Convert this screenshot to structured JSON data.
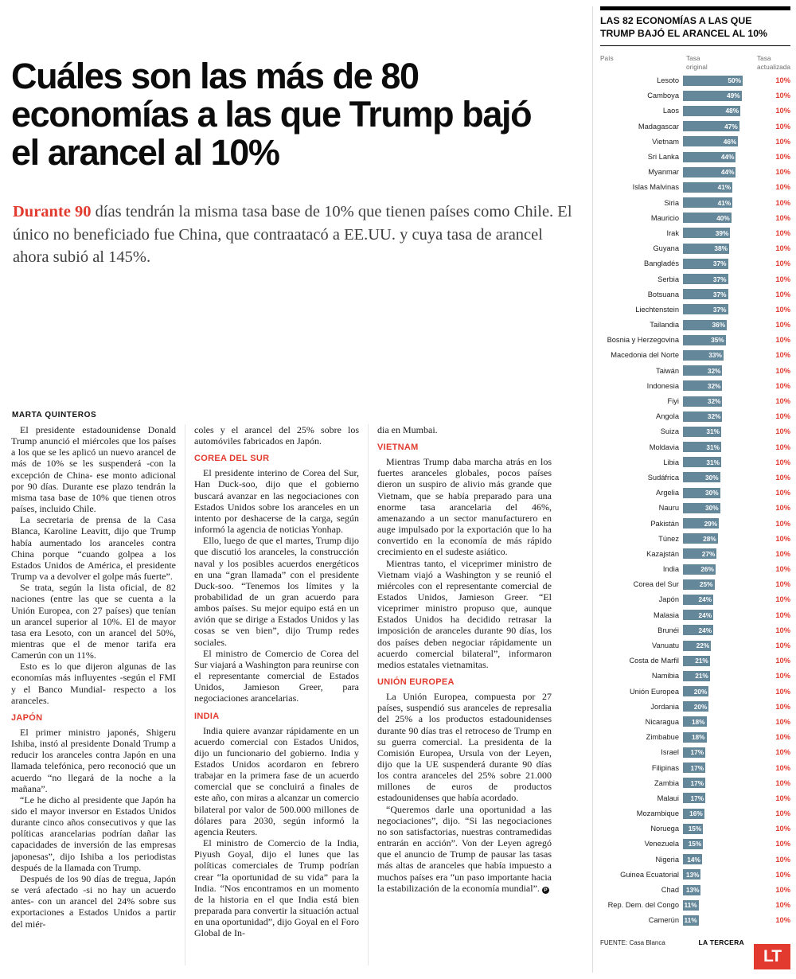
{
  "colors": {
    "accent_red": "#e23a2e",
    "bar": "#64879a"
  },
  "headline": "Cuáles son las más de 80 economías a las que Trump bajó el arancel al 10%",
  "lede": {
    "highlight": "Durante 90",
    "rest": " días tendrán la misma tasa base de 10% que tienen países como Chile. El único no beneficiado fue China, que contraatacó a EE.UU. y cuya tasa de arancel ahora subió al 145%."
  },
  "byline": "MARTA QUINTEROS",
  "article": {
    "end_mark": "P",
    "columns": [
      [
        {
          "t": "p",
          "x": "El presidente estadounidense Donald Trump anunció el miércoles que los países a los que se les aplicó un nuevo arancel de más de 10% se les suspenderá -con la excepción de China- ese monto adicional por 90 días. Durante ese plazo tendrán la misma tasa base de 10% que tienen otros países, incluido Chile."
        },
        {
          "t": "p",
          "x": "La secretaria de prensa de la Casa Blanca, Karoline Leavitt, dijo que Trump había aumentado los aranceles contra China porque “cuando golpea a los Estados Unidos de América, el presidente Trump va a devolver el golpe más fuerte”."
        },
        {
          "t": "p",
          "x": "Se trata, según la lista oficial, de 82 naciones (entre las que se cuenta a la Unión Europea, con 27 países) que tenían un arancel superior al 10%. El de mayor tasa era Lesoto, con un arancel del 50%, mientras que el de menor tarifa era Camerún con un 11%."
        },
        {
          "t": "p",
          "x": "Esto es lo que dijeron algunas de las economías más influyentes -según el FMI y el Banco Mundial- respecto a los aranceles."
        },
        {
          "t": "h",
          "x": "JAPÓN"
        },
        {
          "t": "p",
          "x": "El primer ministro japonés, Shigeru Ishiba, instó al presidente Donald Trump a reducir los aranceles contra Japón en una llamada telefónica, pero reconoció que un acuerdo “no llegará de la noche a la mañana”."
        },
        {
          "t": "p",
          "x": "“Le he dicho al presidente que Japón ha sido el mayor inversor en Estados Unidos durante cinco años consecutivos y que las políticas arancelarias podrían dañar las capacidades de inversión de las empresas japonesas”, dijo Ishiba a los periodistas después de la llamada con Trump."
        },
        {
          "t": "p",
          "x": "Después de los 90 días de tregua, Japón se verá afectado -si no hay un acuerdo antes- con un arancel del 24% sobre sus exportaciones a Estados Unidos a partir del miér-"
        }
      ],
      [
        {
          "t": "pc",
          "x": "coles y el arancel del 25% sobre los automóviles fabricados en Japón."
        },
        {
          "t": "h",
          "x": "COREA DEL SUR"
        },
        {
          "t": "p",
          "x": "El presidente interino de Corea del Sur, Han Duck-soo, dijo que el gobierno buscará avanzar en las negociaciones con Estados Unidos sobre los aranceles en un intento por deshacerse de la carga, según informó la agencia de noticias Yonhap."
        },
        {
          "t": "p",
          "x": "Ello, luego de que el martes, Trump dijo que discutió los aranceles, la construcción naval y los posibles acuerdos energéticos en una “gran llamada” con el presidente Duck-soo. “Tenemos los límites y la probabilidad de un gran acuerdo para ambos países. Su mejor equipo está en un avión que se dirige a Estados Unidos y las cosas se ven bien”, dijo Trump redes sociales."
        },
        {
          "t": "p",
          "x": "El ministro de Comercio de Corea del Sur viajará a Washington para reunirse con el representante comercial de Estados Unidos, Jamieson Greer, para negociaciones arancelarias."
        },
        {
          "t": "h",
          "x": "INDIA"
        },
        {
          "t": "p",
          "x": "India quiere avanzar rápidamente en un acuerdo comercial con Estados Unidos, dijo un funcionario del gobierno. India y Estados Unidos acordaron en febrero trabajar en la primera fase de un acuerdo comercial que se concluirá a finales de este año, con miras a alcanzar un comercio bilateral por valor de 500.000 millones de dólares para 2030, según informó la agencia Reuters."
        },
        {
          "t": "p",
          "x": "El ministro de Comercio de la India, Piyush Goyal, dijo el lunes que las políticas comerciales de Trump podrían crear “la oportunidad de su vida” para la India. “Nos encontramos en un momento de la historia en el que India está bien preparada para convertir la situación actual en una oportunidad”, dijo Goyal en el Foro Global de In-"
        }
      ],
      [
        {
          "t": "pc",
          "x": "dia en Mumbai."
        },
        {
          "t": "h",
          "x": "VIETNAM"
        },
        {
          "t": "p",
          "x": "Mientras Trump daba marcha atrás en los fuertes aranceles globales, pocos países dieron un suspiro de alivio más grande que Vietnam, que se había preparado para una enorme tasa arancelaria del 46%, amenazando a un sector manufacturero en auge impulsado por la exportación que lo ha convertido en la economía de más rápido crecimiento en el sudeste asiático."
        },
        {
          "t": "p",
          "x": "Mientras tanto, el viceprimer ministro de Vietnam viajó a Washington y se reunió el miércoles con el representante comercial de Estados Unidos, Jamieson Greer. “El viceprimer ministro propuso que, aunque Estados Unidos ha decidido retrasar la imposición de aranceles durante 90 días, los dos países deben negociar rápidamente un acuerdo comercial bilateral”, informaron medios estatales vietnamitas."
        },
        {
          "t": "h",
          "x": "UNIÓN EUROPEA"
        },
        {
          "t": "p",
          "x": "La Unión Europea, compuesta por 27 países, suspendió sus aranceles de represalia del 25% a los productos estadounidenses durante 90 días tras el retroceso de Trump en su guerra comercial. La presidenta de la Comisión Europea, Ursula von der Leyen, dijo que la UE suspenderá durante 90 días los contra aranceles del 25% sobre 21.000 millones de euros de productos estadounidenses que había acordado."
        },
        {
          "t": "p",
          "end": true,
          "x": "“Queremos darle una oportunidad a las negociaciones”, dijo. “Si las negociaciones no son satisfactorias, nuestras contramedidas entrarán en acción”. Von der Leyen agregó que el anuncio de Trump de pausar las tasas más altas de aranceles que había impuesto a muchos países era “un paso importante hacia la estabilización de la economía mundial”."
        }
      ]
    ]
  },
  "chart": {
    "title": "LAS 82 ECONOMÍAS A LAS QUE TRUMP BAJÓ EL ARANCEL AL 10%",
    "col_country": "País",
    "col_original": "Tasa\noriginal",
    "col_updated": "Tasa\nactualizada",
    "source": "FUENTE: Casa Blanca",
    "credit": "LA TERCERA",
    "logo": "LT"
  },
  "chart_data": {
    "type": "bar",
    "title": "LAS 82 ECONOMÍAS A LAS QUE TRUMP BAJÓ EL ARANCEL AL 10%",
    "xlabel": "Tasa original (%)",
    "ylabel": "País",
    "unit": "%",
    "updated_rate": "10%",
    "xlim": [
      0,
      50
    ],
    "legend_position": "none",
    "grid": false,
    "categories": [
      "Lesoto",
      "Camboya",
      "Laos",
      "Madagascar",
      "Vietnam",
      "Sri Lanka",
      "Myanmar",
      "Islas Malvinas",
      "Siria",
      "Mauricio",
      "Irak",
      "Guyana",
      "Bangladés",
      "Serbia",
      "Botsuana",
      "Liechtenstein",
      "Tailandia",
      "Bosnia y Herzegovina",
      "Macedonia del Norte",
      "Taiwán",
      "Indonesia",
      "Fiyi",
      "Angola",
      "Suiza",
      "Moldavia",
      "Libia",
      "Sudáfrica",
      "Argelia",
      "Nauru",
      "Pakistán",
      "Túnez",
      "Kazajstán",
      "India",
      "Corea del Sur",
      "Japón",
      "Malasia",
      "Brunéi",
      "Vanuatu",
      "Costa de Marfil",
      "Namibia",
      "Unión Europea",
      "Jordania",
      "Nicaragua",
      "Zimbabue",
      "Israel",
      "Filipinas",
      "Zambia",
      "Malaui",
      "Mozambique",
      "Noruega",
      "Venezuela",
      "Nigeria",
      "Guinea Ecuatorial",
      "Chad",
      "Rep. Dem. del Congo",
      "Camerún"
    ],
    "values": [
      50,
      49,
      48,
      47,
      46,
      44,
      44,
      41,
      41,
      40,
      39,
      38,
      37,
      37,
      37,
      37,
      36,
      35,
      33,
      32,
      32,
      32,
      32,
      31,
      31,
      31,
      30,
      30,
      30,
      29,
      28,
      27,
      26,
      25,
      24,
      24,
      24,
      22,
      21,
      21,
      20,
      20,
      18,
      18,
      17,
      17,
      17,
      17,
      16,
      15,
      15,
      14,
      13,
      13,
      11,
      11
    ]
  }
}
